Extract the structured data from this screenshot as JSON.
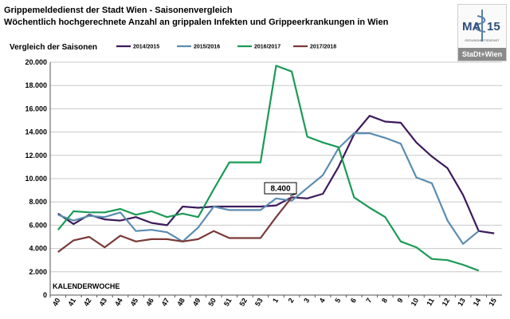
{
  "header": {
    "title": "Grippemeldedienst der Stadt Wien - Saisonenvergleich",
    "subtitle": "Wöchentlich hochgerechnete Anzahl an grippalen Infekten  und Grippeerkrankungen in Wien"
  },
  "logo": {
    "letters": "MA",
    "digits": "15",
    "caption": "GESUNDHEITSDIENST",
    "bar_text": "StaDt+Wien"
  },
  "chart_data": {
    "type": "line",
    "ylabel": "Vergleich der Saisonen",
    "xlabel": "KALENDERWOCHE",
    "ylim": [
      0,
      20000
    ],
    "yticks": [
      0,
      2000,
      4000,
      6000,
      8000,
      10000,
      12000,
      14000,
      16000,
      18000,
      20000
    ],
    "ytick_labels": [
      "0",
      "2.000",
      "4.000",
      "6.000",
      "8.000",
      "10.000",
      "12.000",
      "14.000",
      "16.000",
      "18.000",
      "20.000"
    ],
    "categories": [
      "40",
      "41",
      "42",
      "43",
      "44",
      "45",
      "46",
      "47",
      "48",
      "49",
      "50",
      "51",
      "52",
      "53",
      "1",
      "2",
      "3",
      "4",
      "5",
      "6",
      "7",
      "8",
      "9",
      "10",
      "11",
      "12",
      "13",
      "14",
      "15"
    ],
    "grid": true,
    "legend_position": "top",
    "series": [
      {
        "name": "2014/2015",
        "color": "#3d1a5c",
        "values": [
          7000,
          6100,
          6900,
          6500,
          6400,
          6700,
          6200,
          6000,
          7600,
          7500,
          7600,
          7600,
          7600,
          7600,
          7700,
          8400,
          8300,
          8700,
          11000,
          13800,
          15400,
          14900,
          14800,
          13100,
          11900,
          10900,
          8600,
          5500,
          5300
        ]
      },
      {
        "name": "2015/2016",
        "color": "#5b8db0",
        "values": [
          6900,
          6400,
          6800,
          6700,
          7100,
          5500,
          5600,
          5400,
          4600,
          5800,
          7600,
          7300,
          7300,
          7300,
          8300,
          8100,
          9200,
          10300,
          12600,
          13900,
          13900,
          13500,
          13000,
          10100,
          9600,
          6400,
          4400,
          5500,
          null
        ]
      },
      {
        "name": "2016/2017",
        "color": "#1a9a56",
        "values": [
          5600,
          7200,
          7100,
          7100,
          7400,
          6900,
          7200,
          6700,
          7000,
          6700,
          9100,
          11400,
          11400,
          11400,
          19700,
          19200,
          13600,
          13100,
          12700,
          8400,
          7500,
          6700,
          4600,
          4100,
          3100,
          3000,
          2600,
          2100,
          null
        ]
      },
      {
        "name": "2017/2018",
        "color": "#7a3a38",
        "values": [
          3700,
          4700,
          5000,
          4100,
          5100,
          4600,
          4800,
          4800,
          4600,
          4800,
          5500,
          4900,
          4900,
          4900,
          6700,
          8400,
          null,
          null,
          null,
          null,
          null,
          null,
          null,
          null,
          null,
          null,
          null,
          null,
          null
        ]
      }
    ],
    "annotations": [
      {
        "text": "8.400",
        "x": "2",
        "y": 8400
      }
    ]
  }
}
